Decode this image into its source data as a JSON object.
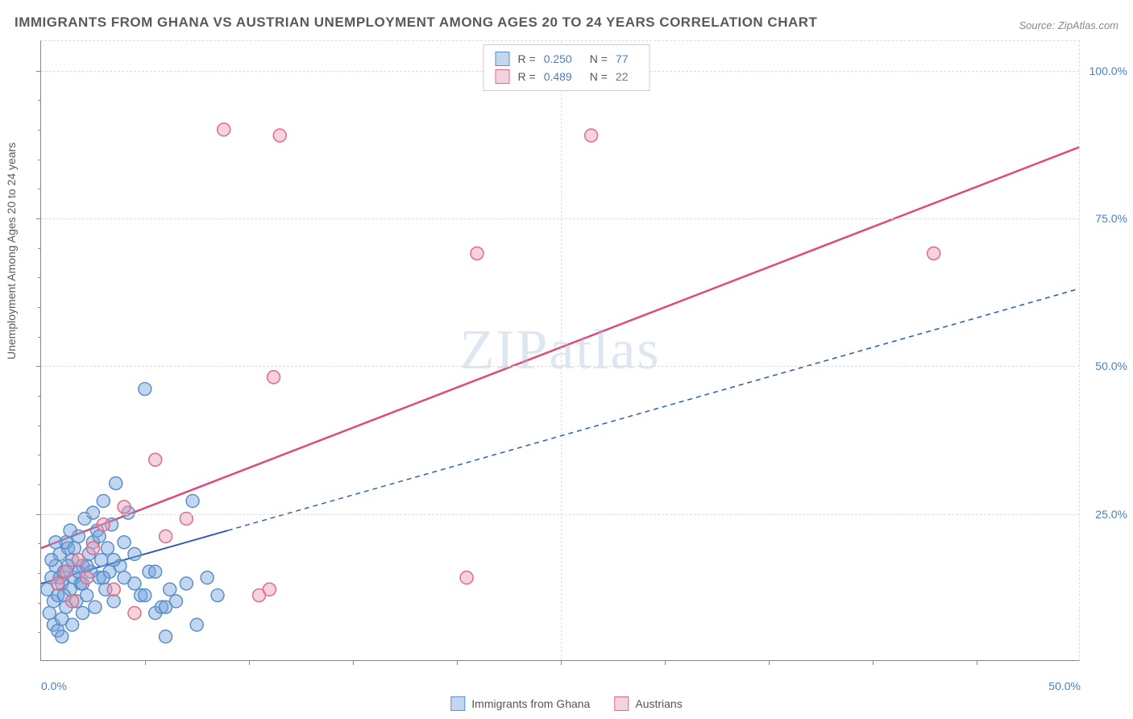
{
  "title": "IMMIGRANTS FROM GHANA VS AUSTRIAN UNEMPLOYMENT AMONG AGES 20 TO 24 YEARS CORRELATION CHART",
  "source": "Source: ZipAtlas.com",
  "watermark": "ZIPatlas",
  "yaxis_title": "Unemployment Among Ages 20 to 24 years",
  "chart": {
    "type": "scatter",
    "xlim": [
      0,
      50
    ],
    "ylim": [
      0,
      105
    ],
    "x_ticks": [
      0,
      50
    ],
    "x_tick_labels": [
      "0.0%",
      "50.0%"
    ],
    "x_minor_ticks": [
      5,
      10,
      15,
      20,
      25,
      30,
      35,
      40,
      45
    ],
    "y_ticks": [
      25,
      50,
      75,
      100
    ],
    "y_tick_labels": [
      "25.0%",
      "50.0%",
      "75.0%",
      "100.0%"
    ],
    "y_minor_ticks": [
      5,
      10,
      15,
      20,
      30,
      35,
      40,
      45,
      55,
      60,
      65,
      70,
      80,
      85,
      90,
      95
    ],
    "grid_color": "#dddddd",
    "background_color": "#ffffff",
    "axis_color": "#888888",
    "marker_radius": 8,
    "marker_stroke_width": 1.5
  },
  "series": [
    {
      "name": "Immigrants from Ghana",
      "fill": "rgba(120,165,220,0.45)",
      "stroke": "#5a8fc9",
      "r_value": "0.250",
      "n_value": "77",
      "trend": {
        "x1": 0,
        "y1": 13,
        "x2": 9,
        "y2": 20,
        "solid_until_x": 9,
        "dash_to_x": 50,
        "dash_to_y": 63,
        "color": "#2f5fa5",
        "width": 2
      },
      "points": [
        [
          0.3,
          12
        ],
        [
          0.5,
          14
        ],
        [
          0.6,
          10
        ],
        [
          0.7,
          16
        ],
        [
          0.8,
          11
        ],
        [
          0.9,
          18
        ],
        [
          1.0,
          13
        ],
        [
          1.1,
          15
        ],
        [
          1.2,
          9
        ],
        [
          1.3,
          19
        ],
        [
          1.4,
          12
        ],
        [
          1.5,
          17
        ],
        [
          1.6,
          14
        ],
        [
          1.7,
          10
        ],
        [
          1.8,
          21
        ],
        [
          1.9,
          13
        ],
        [
          2.0,
          16
        ],
        [
          2.1,
          24
        ],
        [
          2.2,
          11
        ],
        [
          2.3,
          18
        ],
        [
          2.4,
          15
        ],
        [
          2.5,
          20
        ],
        [
          2.6,
          9
        ],
        [
          2.7,
          22
        ],
        [
          2.8,
          14
        ],
        [
          2.9,
          17
        ],
        [
          3.0,
          27
        ],
        [
          3.1,
          12
        ],
        [
          3.2,
          19
        ],
        [
          3.3,
          15
        ],
        [
          3.4,
          23
        ],
        [
          3.5,
          10
        ],
        [
          3.6,
          30
        ],
        [
          3.8,
          16
        ],
        [
          4.0,
          14
        ],
        [
          4.2,
          25
        ],
        [
          4.5,
          18
        ],
        [
          4.8,
          11
        ],
        [
          5.0,
          46
        ],
        [
          5.2,
          15
        ],
        [
          5.5,
          8
        ],
        [
          5.8,
          9
        ],
        [
          6.0,
          4
        ],
        [
          6.2,
          12
        ],
        [
          6.5,
          10
        ],
        [
          7.0,
          13
        ],
        [
          7.3,
          27
        ],
        [
          7.5,
          6
        ],
        [
          8.0,
          14
        ],
        [
          8.5,
          11
        ],
        [
          0.4,
          8
        ],
        [
          0.6,
          6
        ],
        [
          0.8,
          5
        ],
        [
          1.0,
          7
        ],
        [
          1.2,
          20
        ],
        [
          1.4,
          22
        ],
        [
          1.6,
          19
        ],
        [
          1.8,
          15
        ],
        [
          2.0,
          13
        ],
        [
          2.2,
          16
        ],
        [
          2.5,
          25
        ],
        [
          2.8,
          21
        ],
        [
          3.0,
          14
        ],
        [
          3.5,
          17
        ],
        [
          4.0,
          20
        ],
        [
          4.5,
          13
        ],
        [
          5.0,
          11
        ],
        [
          5.5,
          15
        ],
        [
          6.0,
          9
        ],
        [
          1.0,
          4
        ],
        [
          1.5,
          6
        ],
        [
          2.0,
          8
        ],
        [
          0.5,
          17
        ],
        [
          0.7,
          20
        ],
        [
          0.9,
          14
        ],
        [
          1.1,
          11
        ],
        [
          1.3,
          16
        ]
      ]
    },
    {
      "name": "Austrians",
      "fill": "rgba(235,155,175,0.45)",
      "stroke": "#e06a8a",
      "r_value": "0.489",
      "n_value": "22",
      "trend": {
        "x1": 0,
        "y1": 19,
        "x2": 50,
        "y2": 87,
        "color": "#e04a7a",
        "width": 2.5
      },
      "points": [
        [
          0.8,
          13
        ],
        [
          1.2,
          15
        ],
        [
          1.5,
          10
        ],
        [
          1.8,
          17
        ],
        [
          2.2,
          14
        ],
        [
          2.5,
          19
        ],
        [
          3.0,
          23
        ],
        [
          3.5,
          12
        ],
        [
          4.0,
          26
        ],
        [
          4.5,
          8
        ],
        [
          5.5,
          34
        ],
        [
          6.0,
          21
        ],
        [
          7.0,
          24
        ],
        [
          8.8,
          90
        ],
        [
          10.5,
          11
        ],
        [
          11.0,
          12
        ],
        [
          11.2,
          48
        ],
        [
          11.5,
          89
        ],
        [
          20.5,
          14
        ],
        [
          21,
          69
        ],
        [
          26.5,
          89
        ],
        [
          43,
          69
        ]
      ]
    }
  ],
  "legend_top": {
    "r_label": "R =",
    "n_label": "N ="
  },
  "legend_bottom": [
    {
      "label": "Immigrants from Ghana",
      "fill": "rgba(120,165,220,0.45)",
      "stroke": "#5a8fc9"
    },
    {
      "label": "Austrians",
      "fill": "rgba(235,155,175,0.45)",
      "stroke": "#e06a8a"
    }
  ]
}
